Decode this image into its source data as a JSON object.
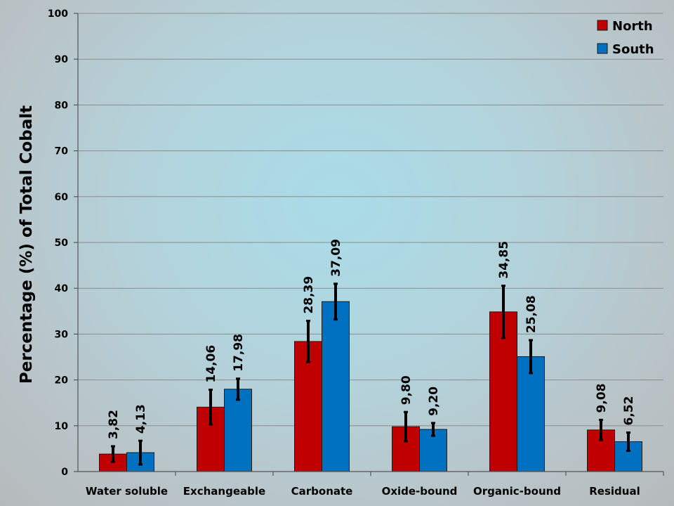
{
  "chart_data": {
    "type": "bar",
    "title": "",
    "xlabel": "",
    "ylabel": "Percentage (%) of Total Cobalt",
    "ylim": [
      0,
      100
    ],
    "yticks": [
      0,
      10,
      20,
      30,
      40,
      50,
      60,
      70,
      80,
      90,
      100
    ],
    "grid": true,
    "legend_position": "top-right",
    "categories": [
      "Water soluble",
      "Exchangeable",
      "Carbonate",
      "Oxide-bound",
      "Organic-bound",
      "Residual"
    ],
    "series": [
      {
        "name": "North",
        "color": "#c00000",
        "values": [
          3.82,
          14.06,
          28.39,
          9.8,
          34.85,
          9.08
        ],
        "labels": [
          "3,82",
          "14,06",
          "28,39",
          "9,80",
          "34,85",
          "9,08"
        ],
        "error": [
          1.7,
          3.8,
          4.5,
          3.2,
          5.7,
          2.2
        ]
      },
      {
        "name": "South",
        "color": "#0070c0",
        "values": [
          4.13,
          17.98,
          37.09,
          9.2,
          25.08,
          6.52
        ],
        "labels": [
          "4,13",
          "17,98",
          "37,09",
          "9,20",
          "25,08",
          "6,52"
        ],
        "error": [
          2.6,
          2.3,
          3.9,
          1.4,
          3.6,
          2.0
        ]
      }
    ]
  }
}
